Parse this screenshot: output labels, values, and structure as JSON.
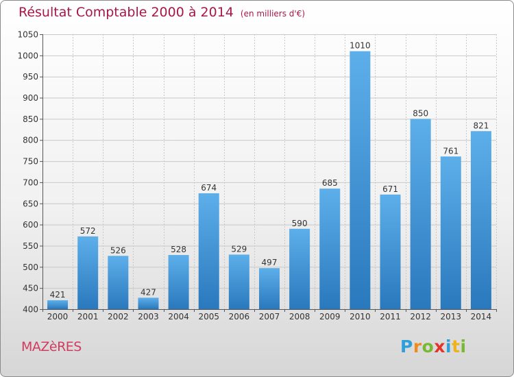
{
  "title": "Résultat Comptable 2000 à 2014",
  "unit": "(en milliers d'€)",
  "commune": "MAZèRES",
  "logo": {
    "text": "Proxiti",
    "letters": [
      {
        "char": "P",
        "color": "#2e9fd8"
      },
      {
        "char": "r",
        "color": "#f08a1c"
      },
      {
        "char": "o",
        "color": "#78b833"
      },
      {
        "char": "x",
        "color": "#e2342a"
      },
      {
        "char": "i",
        "color": "#2e9fd8"
      },
      {
        "char": "t",
        "color": "#f0b21c"
      },
      {
        "char": "i",
        "color": "#78b833"
      }
    ]
  },
  "colors": {
    "title": "#a7154a",
    "bar_light": "#5dafea",
    "bar_dark": "#2a78bd",
    "grid": "#c8c8c8"
  },
  "chart_data": {
    "type": "bar",
    "title": "Résultat Comptable 2000 à 2014",
    "xlabel": "",
    "ylabel": "(en milliers d'€)",
    "categories": [
      "2000",
      "2001",
      "2002",
      "2003",
      "2004",
      "2005",
      "2006",
      "2007",
      "2008",
      "2009",
      "2010",
      "2011",
      "2012",
      "2013",
      "2014"
    ],
    "values": [
      421,
      572,
      526,
      427,
      528,
      674,
      529,
      497,
      590,
      685,
      1010,
      671,
      850,
      761,
      821
    ],
    "ylim": [
      400,
      1050
    ],
    "yticks": [
      400,
      450,
      500,
      550,
      600,
      650,
      700,
      750,
      800,
      850,
      900,
      950,
      1000,
      1050
    ],
    "grid": true
  }
}
